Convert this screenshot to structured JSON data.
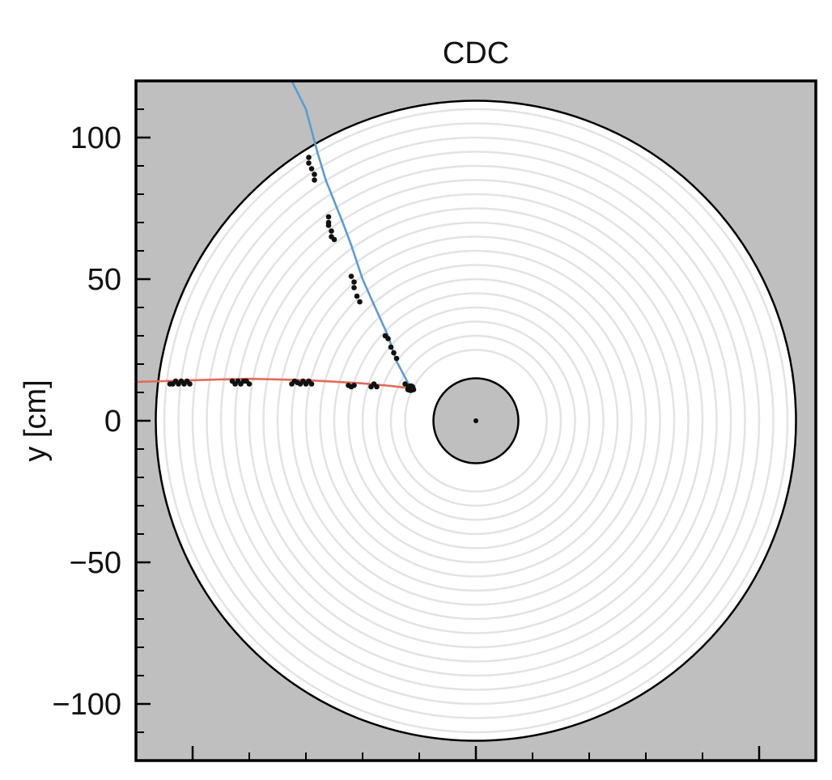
{
  "chart_data": {
    "type": "scatter",
    "title": "CDC",
    "xlabel": "",
    "ylabel": "y [cm]",
    "xlim": [
      -120,
      120
    ],
    "ylim": [
      -120,
      120
    ],
    "y_ticks": [
      {
        "value": 100,
        "label": "100"
      },
      {
        "value": 50,
        "label": "50"
      },
      {
        "value": 0,
        "label": "0"
      },
      {
        "value": -50,
        "label": "−50"
      },
      {
        "value": -100,
        "label": "−100"
      }
    ],
    "y_minor_step": 10,
    "x_major_ticks": [
      -100,
      0,
      100
    ],
    "x_minor_step": 20,
    "grid": false,
    "background_color": "#bfbfbf",
    "detector": {
      "outer_radius": 113,
      "inner_radius": 15,
      "layer_radii": [
        25,
        30,
        35,
        40,
        45,
        50,
        55,
        60,
        65,
        70,
        75,
        80,
        85,
        90,
        95,
        100,
        105,
        110
      ],
      "layer_color": "#e3e3e3"
    },
    "vertex": {
      "x": -23,
      "y": 11.5
    },
    "origin_point": {
      "x": 0,
      "y": 0
    },
    "series": [
      {
        "color": "#5b9bd5",
        "curve": [
          [
            -23,
            11.5
          ],
          [
            -28,
            21
          ],
          [
            -31,
            30
          ],
          [
            -36,
            41
          ],
          [
            -40,
            50
          ],
          [
            -44,
            62
          ],
          [
            -47,
            70
          ],
          [
            -53,
            85
          ],
          [
            -56,
            95
          ],
          [
            -60,
            110
          ],
          [
            -65,
            120
          ]
        ],
        "hits": [
          [
            -24,
            12
          ],
          [
            -25,
            13
          ],
          [
            -28,
            22
          ],
          [
            -29,
            24
          ],
          [
            -30,
            26
          ],
          [
            -31,
            29
          ],
          [
            -32,
            30
          ],
          [
            -41,
            42
          ],
          [
            -42,
            44
          ],
          [
            -43,
            47
          ],
          [
            -43,
            49
          ],
          [
            -44,
            51
          ],
          [
            -50,
            64
          ],
          [
            -51,
            65
          ],
          [
            -51,
            67
          ],
          [
            -52,
            69
          ],
          [
            -52,
            70
          ],
          [
            -52,
            72
          ],
          [
            -57,
            85
          ],
          [
            -57,
            87
          ],
          [
            -58,
            89
          ],
          [
            -59,
            91
          ],
          [
            -59,
            93
          ]
        ]
      },
      {
        "color": "#e06c5a",
        "curve": [
          [
            -23,
            11.5
          ],
          [
            -30,
            12.3
          ],
          [
            -40,
            13.2
          ],
          [
            -50,
            13.8
          ],
          [
            -60,
            14.3
          ],
          [
            -70,
            14.6
          ],
          [
            -80,
            14.8
          ],
          [
            -90,
            14.6
          ],
          [
            -100,
            14.3
          ],
          [
            -110,
            14.0
          ],
          [
            -120,
            13.7
          ]
        ],
        "hits": [
          [
            -22,
            11
          ],
          [
            -23,
            12
          ],
          [
            -24,
            11
          ],
          [
            -35,
            12
          ],
          [
            -36,
            13
          ],
          [
            -37,
            12
          ],
          [
            -43,
            12.5
          ],
          [
            -44,
            12
          ],
          [
            -45,
            12.5
          ],
          [
            -58,
            13
          ],
          [
            -59,
            14
          ],
          [
            -60,
            13
          ],
          [
            -61,
            14
          ],
          [
            -62,
            13
          ],
          [
            -63,
            13.5
          ],
          [
            -64,
            14
          ],
          [
            -65,
            13
          ],
          [
            -80,
            13
          ],
          [
            -81,
            14
          ],
          [
            -82,
            14
          ],
          [
            -83,
            13
          ],
          [
            -84,
            14
          ],
          [
            -85,
            13
          ],
          [
            -86,
            14
          ],
          [
            -101,
            13
          ],
          [
            -102,
            14
          ],
          [
            -103,
            13
          ],
          [
            -104,
            14
          ],
          [
            -105,
            13
          ],
          [
            -106,
            14
          ],
          [
            -107,
            13
          ],
          [
            -108,
            13
          ]
        ]
      }
    ]
  }
}
